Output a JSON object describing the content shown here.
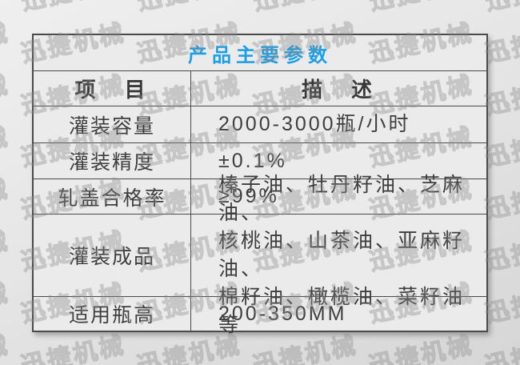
{
  "watermark": {
    "text": "迅捷机械"
  },
  "table": {
    "title": "产品主要参数",
    "accent_color": "#1b9fe6",
    "header": {
      "item": "项　目",
      "description": "描　述"
    },
    "rows": [
      {
        "label": "灌装容量",
        "value": "2000-3000瓶/小时"
      },
      {
        "label": "灌装精度",
        "value": "±0.1%"
      },
      {
        "label": "轧盖合格率",
        "value": "≥99%"
      },
      {
        "label": "灌装成品",
        "value": "榛子油、牡丹籽油、芝麻油、\n核桃油、山茶油、亚麻籽油、\n棉籽油、橄榄油、菜籽油等"
      },
      {
        "label": "适用瓶高",
        "value": "200-350MM"
      }
    ]
  }
}
